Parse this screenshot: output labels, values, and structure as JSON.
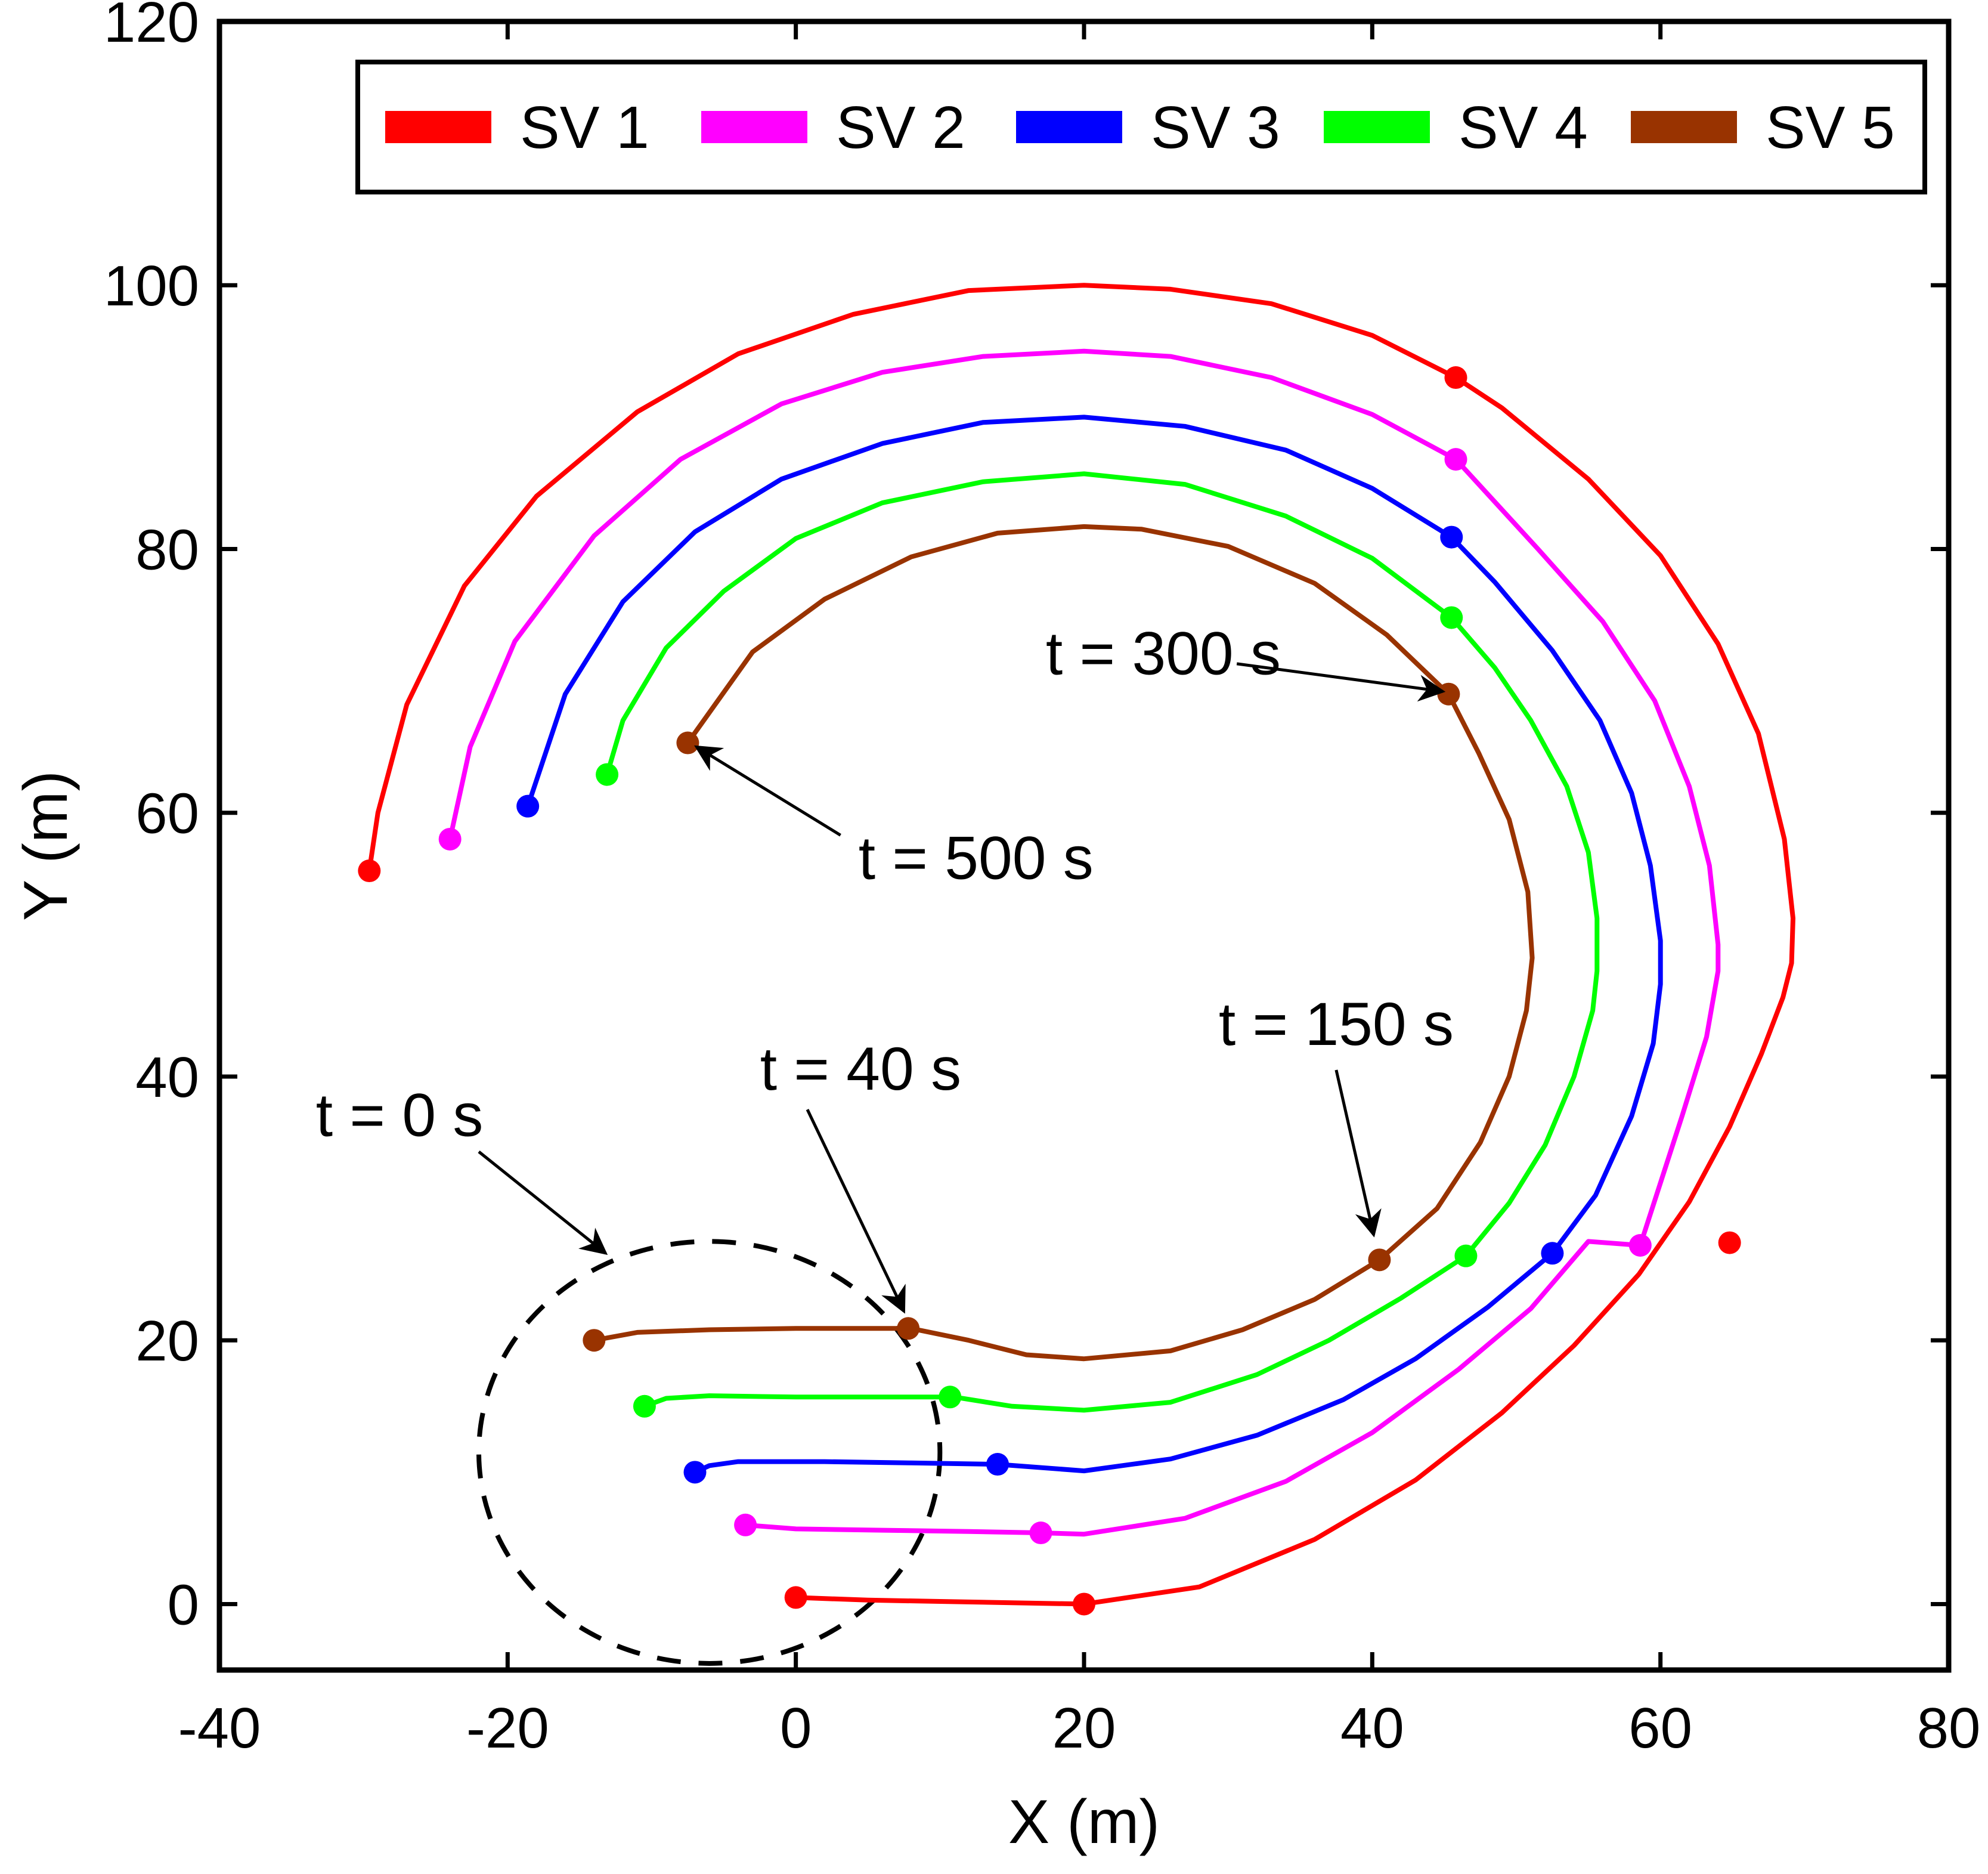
{
  "chart_data": {
    "type": "line",
    "title": "",
    "xlabel": "X (m)",
    "ylabel": "Y (m)",
    "xlim": [
      -40,
      80
    ],
    "ylim": [
      -5,
      120
    ],
    "xticks": [
      -40,
      -20,
      0,
      20,
      40,
      60,
      80
    ],
    "yticks": [
      0,
      20,
      40,
      60,
      80,
      100,
      120
    ],
    "grid": false,
    "legend_position": "top",
    "series": [
      {
        "name": "SV 1",
        "color": "#ff0000",
        "points": [
          [
            0,
            0.5
          ],
          [
            5,
            0.3
          ],
          [
            10,
            0.2
          ],
          [
            15,
            0.1
          ],
          [
            20,
            0
          ],
          [
            28,
            1.3
          ],
          [
            36,
            4.9
          ],
          [
            43,
            9.4
          ],
          [
            49,
            14.5
          ],
          [
            54,
            19.6
          ],
          [
            58.5,
            25
          ],
          [
            62,
            30.5
          ],
          [
            64.8,
            36.2
          ],
          [
            67,
            41.7
          ],
          [
            68.5,
            46
          ],
          [
            69.1,
            48.6
          ],
          [
            69.2,
            52
          ],
          [
            68.6,
            58
          ],
          [
            66.8,
            66
          ],
          [
            64,
            72.8
          ],
          [
            60,
            79.5
          ],
          [
            55,
            85.3
          ],
          [
            49,
            90.7
          ],
          [
            45.8,
            93
          ],
          [
            40,
            96.2
          ],
          [
            33,
            98.6
          ],
          [
            26,
            99.7
          ],
          [
            20,
            100
          ],
          [
            12,
            99.6
          ],
          [
            4,
            97.8
          ],
          [
            -4,
            94.8
          ],
          [
            -11,
            90.4
          ],
          [
            -18,
            84
          ],
          [
            -23,
            77.2
          ],
          [
            -27,
            68.2
          ],
          [
            -29,
            60
          ],
          [
            -29.6,
            55.6
          ]
        ],
        "markers": [
          [
            0,
            0.5
          ],
          [
            20,
            0
          ],
          [
            64.8,
            27.4
          ],
          [
            45.8,
            93
          ],
          [
            -29.6,
            55.6
          ]
        ]
      },
      {
        "name": "SV 2",
        "color": "#ff00ff",
        "points": [
          [
            -3.5,
            6
          ],
          [
            0,
            5.7
          ],
          [
            6,
            5.6
          ],
          [
            12,
            5.5
          ],
          [
            17,
            5.4
          ],
          [
            20,
            5.3
          ],
          [
            27,
            6.5
          ],
          [
            34,
            9.3
          ],
          [
            40,
            13
          ],
          [
            46,
            17.8
          ],
          [
            51,
            22.4
          ],
          [
            55,
            27.5
          ],
          [
            58.6,
            27.2
          ],
          [
            58.6,
            27.2
          ],
          [
            61.5,
            37
          ],
          [
            63.2,
            43
          ],
          [
            64,
            48
          ],
          [
            64,
            50
          ],
          [
            63.4,
            56
          ],
          [
            62,
            62
          ],
          [
            59.6,
            68.5
          ],
          [
            56,
            74.5
          ],
          [
            51.5,
            80
          ],
          [
            45.8,
            86.8
          ],
          [
            40,
            90.2
          ],
          [
            33,
            93
          ],
          [
            26,
            94.6
          ],
          [
            20,
            95
          ],
          [
            13,
            94.6
          ],
          [
            6,
            93.4
          ],
          [
            -1,
            91
          ],
          [
            -8,
            86.8
          ],
          [
            -14,
            81
          ],
          [
            -19.5,
            73
          ],
          [
            -22.6,
            65
          ],
          [
            -24,
            58
          ]
        ],
        "markers": [
          [
            -3.5,
            6
          ],
          [
            17,
            5.4
          ],
          [
            58.6,
            27.2
          ],
          [
            45.8,
            86.8
          ],
          [
            -24,
            58
          ]
        ]
      },
      {
        "name": "SV 3",
        "color": "#0000ff",
        "points": [
          [
            -7,
            10
          ],
          [
            -6,
            10.5
          ],
          [
            -4,
            10.8
          ],
          [
            2,
            10.8
          ],
          [
            8,
            10.7
          ],
          [
            14,
            10.6
          ],
          [
            20,
            10.1
          ],
          [
            26,
            11
          ],
          [
            32,
            12.8
          ],
          [
            38,
            15.5
          ],
          [
            43,
            18.6
          ],
          [
            48,
            22.5
          ],
          [
            52.5,
            26.6
          ],
          [
            55.5,
            31
          ],
          [
            58,
            37
          ],
          [
            59.5,
            42.5
          ],
          [
            60,
            47
          ],
          [
            60,
            50.3
          ],
          [
            59.3,
            56
          ],
          [
            58,
            61.5
          ],
          [
            55.8,
            67
          ],
          [
            52.5,
            72.3
          ],
          [
            48.5,
            77.5
          ],
          [
            45.5,
            80.9
          ],
          [
            40,
            84.6
          ],
          [
            34,
            87.5
          ],
          [
            27,
            89.3
          ],
          [
            20,
            90
          ],
          [
            13,
            89.6
          ],
          [
            6,
            88
          ],
          [
            -1,
            85.3
          ],
          [
            -7,
            81.3
          ],
          [
            -12,
            76
          ],
          [
            -16,
            69
          ],
          [
            -18.6,
            60.5
          ]
        ],
        "markers": [
          [
            -7,
            10
          ],
          [
            14,
            10.6
          ],
          [
            52.5,
            26.6
          ],
          [
            45.5,
            80.9
          ],
          [
            -18.6,
            60.5
          ]
        ]
      },
      {
        "name": "SV 4",
        "color": "#00ff00",
        "points": [
          [
            -10.5,
            15
          ],
          [
            -9,
            15.6
          ],
          [
            -6,
            15.8
          ],
          [
            0,
            15.7
          ],
          [
            5,
            15.7
          ],
          [
            11,
            15.7
          ],
          [
            15,
            15
          ],
          [
            20,
            14.7
          ],
          [
            26,
            15.3
          ],
          [
            32,
            17.4
          ],
          [
            37,
            20
          ],
          [
            42,
            23.2
          ],
          [
            46.5,
            26.4
          ],
          [
            49.5,
            30.4
          ],
          [
            52,
            34.8
          ],
          [
            54,
            40
          ],
          [
            55.3,
            45
          ],
          [
            55.6,
            48
          ],
          [
            55.6,
            52
          ],
          [
            55,
            57
          ],
          [
            53.5,
            62
          ],
          [
            51,
            67
          ],
          [
            48.5,
            71
          ],
          [
            45.5,
            74.8
          ],
          [
            40,
            79.3
          ],
          [
            34,
            82.5
          ],
          [
            27,
            84.9
          ],
          [
            20,
            85.7
          ],
          [
            13,
            85.1
          ],
          [
            6,
            83.5
          ],
          [
            0,
            80.8
          ],
          [
            -5,
            76.8
          ],
          [
            -9,
            72.5
          ],
          [
            -12,
            67
          ],
          [
            -13.1,
            62.9
          ]
        ],
        "markers": [
          [
            -10.5,
            15
          ],
          [
            10.7,
            15.7
          ],
          [
            46.5,
            26.4
          ],
          [
            45.5,
            74.8
          ],
          [
            -13.1,
            62.9
          ]
        ]
      },
      {
        "name": "SV 5",
        "color": "#993300",
        "points": [
          [
            -14,
            20
          ],
          [
            -11,
            20.6
          ],
          [
            -6,
            20.8
          ],
          [
            0,
            20.9
          ],
          [
            4,
            20.9
          ],
          [
            8,
            20.9
          ],
          [
            12,
            20
          ],
          [
            16,
            18.9
          ],
          [
            20,
            18.6
          ],
          [
            26,
            19.2
          ],
          [
            31,
            20.8
          ],
          [
            36,
            23.1
          ],
          [
            40.5,
            26.1
          ],
          [
            44.5,
            30
          ],
          [
            47.5,
            35
          ],
          [
            49.5,
            40
          ],
          [
            50.7,
            45
          ],
          [
            51.1,
            49
          ],
          [
            50.8,
            54
          ],
          [
            49.5,
            59.5
          ],
          [
            47.4,
            64.5
          ],
          [
            45.3,
            69
          ],
          [
            41,
            73.5
          ],
          [
            36,
            77.4
          ],
          [
            30,
            80.2
          ],
          [
            24,
            81.5
          ],
          [
            20,
            81.7
          ],
          [
            14,
            81.2
          ],
          [
            8,
            79.4
          ],
          [
            2,
            76.2
          ],
          [
            -3,
            72.2
          ],
          [
            -7.5,
            65.3
          ]
        ],
        "markers": [
          [
            -14,
            20
          ],
          [
            7.8,
            20.9
          ],
          [
            40.5,
            26.1
          ],
          [
            45.3,
            69
          ],
          [
            -7.5,
            65.3
          ]
        ]
      }
    ],
    "annotations": [
      {
        "text": "t = 0 s",
        "text_at": [
          -27.5,
          35.5
        ],
        "arrow_from": [
          -22,
          34.3
        ],
        "arrow_to": [
          -13.2,
          26.6
        ]
      },
      {
        "text": "t = 40 s",
        "text_at": [
          4.5,
          39
        ],
        "arrow_from": [
          0.8,
          37.5
        ],
        "arrow_to": [
          7.5,
          22.2
        ]
      },
      {
        "text": "t = 150 s",
        "text_at": [
          37.5,
          42.4
        ],
        "arrow_from": [
          37.5,
          40.5
        ],
        "arrow_to": [
          40.1,
          28
        ]
      },
      {
        "text": "t = 300 s",
        "text_at": [
          25.5,
          70.5
        ],
        "arrow_from": [
          30.6,
          71.3
        ],
        "arrow_to": [
          44.9,
          69.2
        ]
      },
      {
        "text": "t = 500 s",
        "text_at": [
          12.5,
          55
        ],
        "arrow_from": [
          3.1,
          58.3
        ],
        "arrow_to": [
          -6.9,
          65
        ]
      }
    ],
    "dashed_circle": {
      "center": [
        -6,
        11.5
      ],
      "radius": 16
    }
  }
}
